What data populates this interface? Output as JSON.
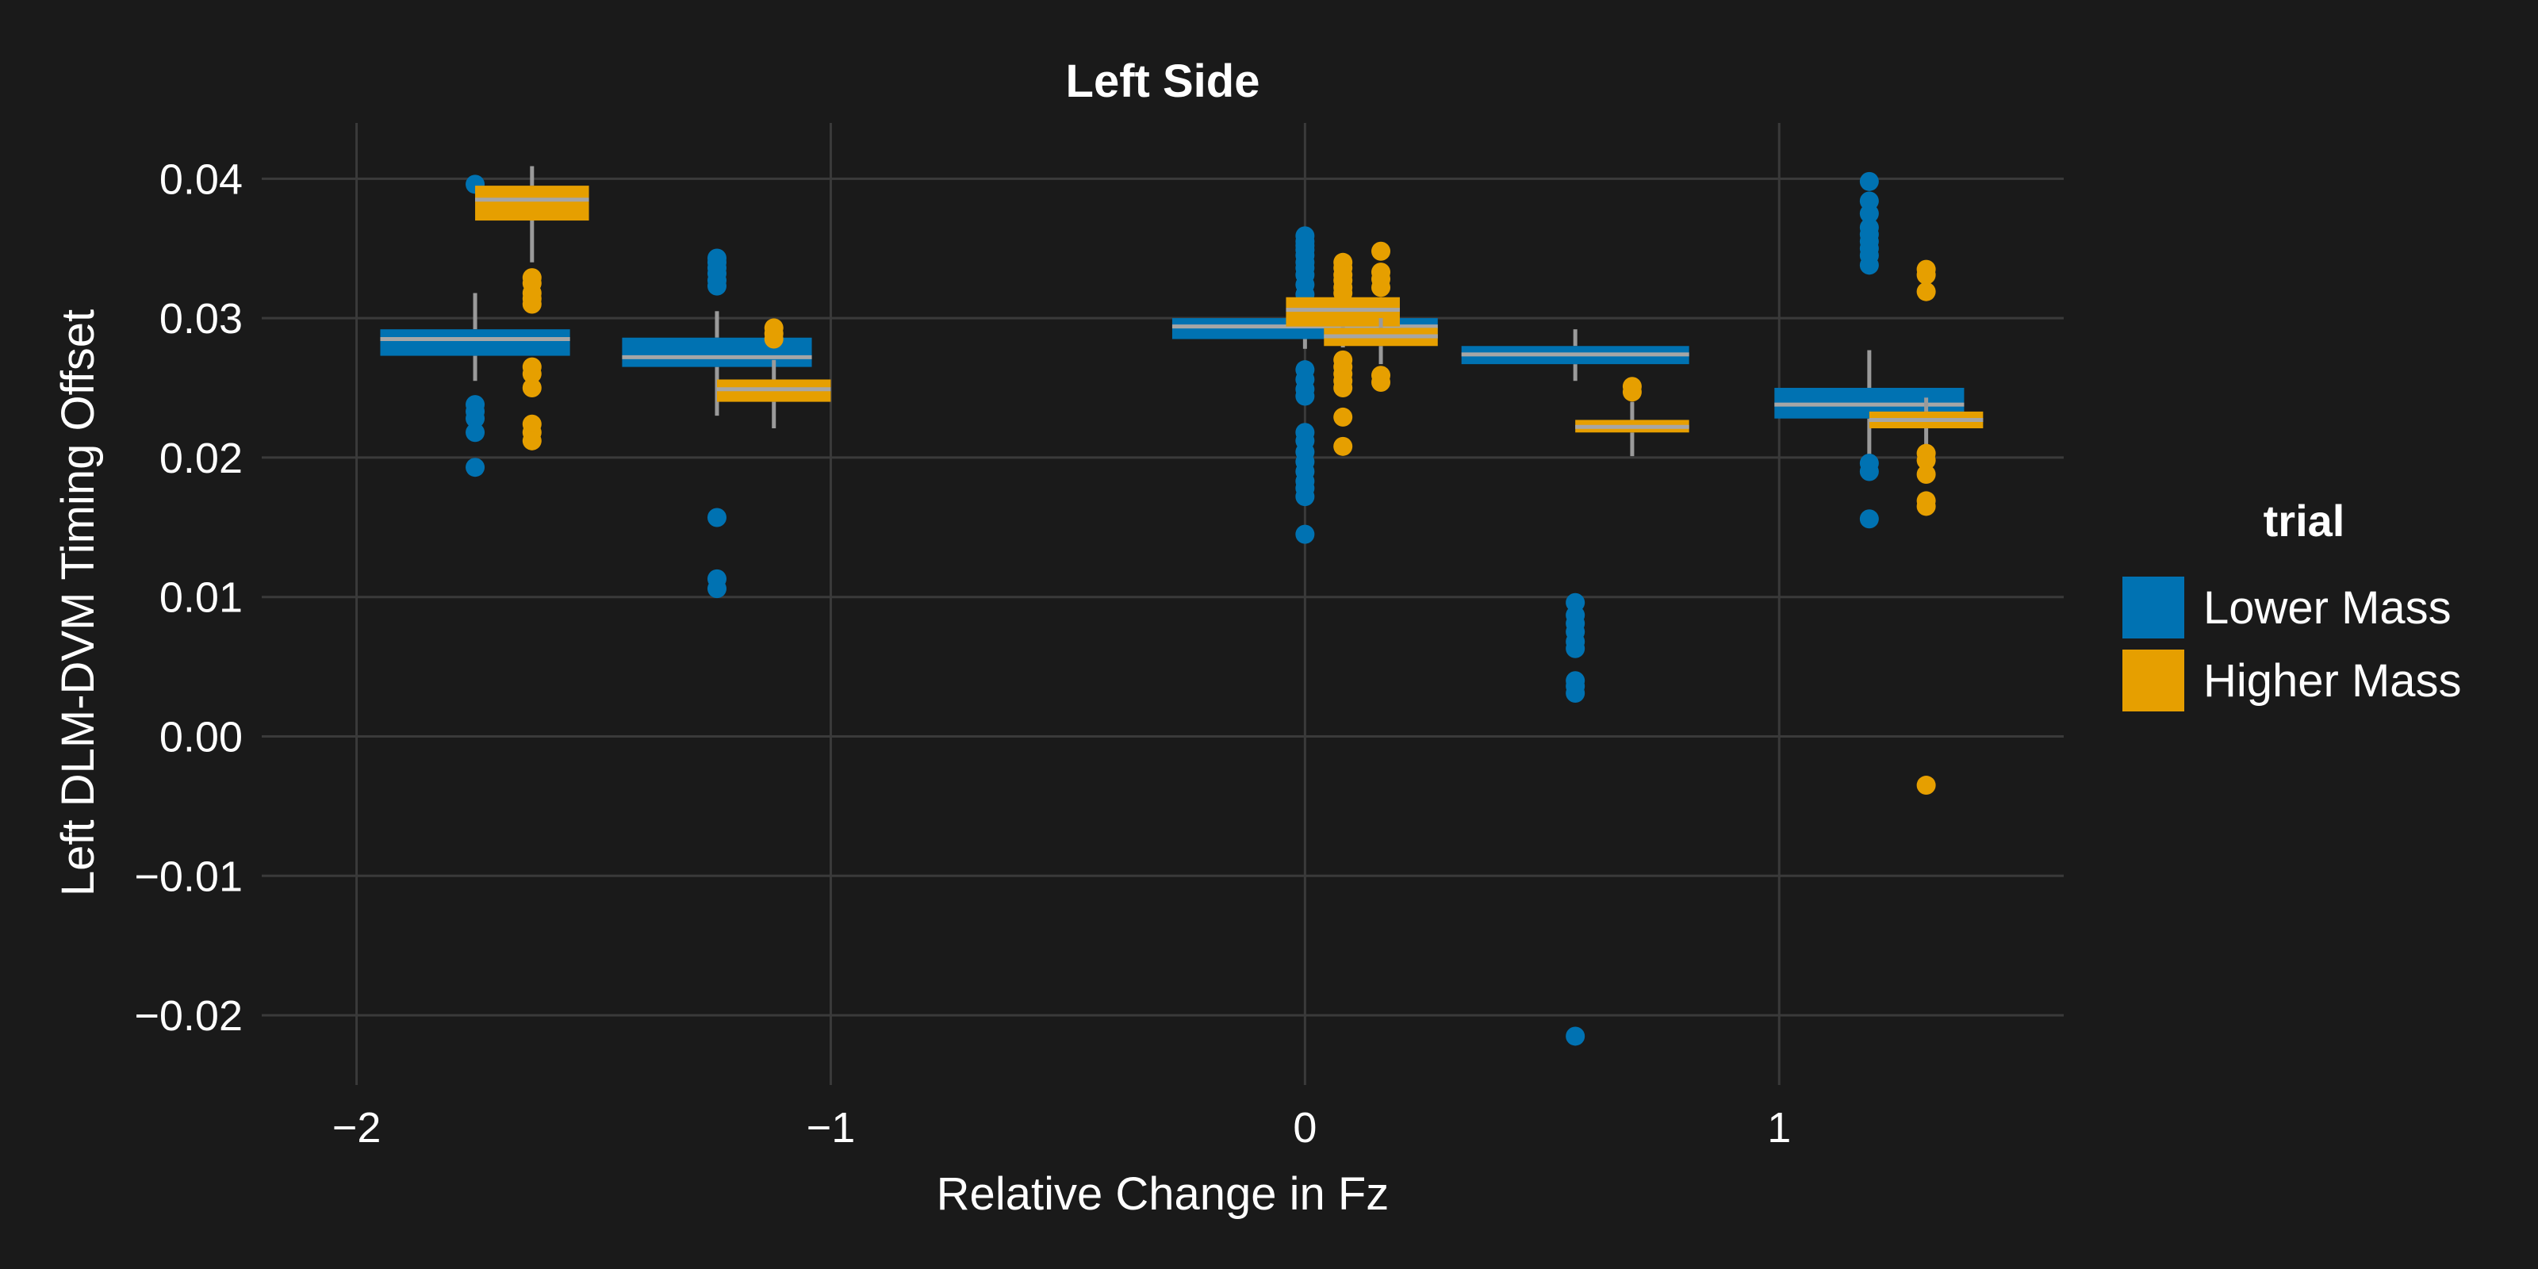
{
  "chart_data": {
    "type": "boxplot",
    "title": "Left Side",
    "xlabel": "Relative Change in Fz",
    "ylabel": "Left DLM-DVM Timing Offset",
    "xlim": [
      -2.2,
      1.6
    ],
    "ylim": [
      -0.025,
      0.044
    ],
    "x_ticks": [
      -2,
      -1,
      0,
      1
    ],
    "x_tick_labels": [
      "−2",
      "−1",
      "0",
      "1"
    ],
    "y_ticks": [
      -0.02,
      -0.01,
      0.0,
      0.01,
      0.02,
      0.03,
      0.04
    ],
    "y_tick_labels": [
      "−0.02",
      "−0.01",
      "0.00",
      "0.01",
      "0.02",
      "0.03",
      "0.04"
    ],
    "grid": true,
    "legend": {
      "title": "trial",
      "position": "right"
    },
    "series": [
      {
        "name": "Lower Mass",
        "color": "#0072b2",
        "boxes": [
          {
            "x": -1.75,
            "halfwidth": 0.2,
            "q1": 0.0273,
            "median": 0.0285,
            "q3": 0.0292,
            "whisker_low": 0.0255,
            "whisker_high": 0.0318,
            "outliers": [
              0.0396,
              0.0238,
              0.0233,
              0.0228,
              0.0218,
              0.0193
            ]
          },
          {
            "x": -1.24,
            "halfwidth": 0.2,
            "q1": 0.0265,
            "median": 0.0272,
            "q3": 0.0286,
            "whisker_low": 0.023,
            "whisker_high": 0.0305,
            "outliers": [
              0.0343,
              0.034,
              0.0336,
              0.0332,
              0.0327,
              0.0323,
              0.0157,
              0.0113,
              0.0106
            ]
          },
          {
            "x": 0.0,
            "halfwidth": 0.28,
            "q1": 0.0285,
            "median": 0.0294,
            "q3": 0.03,
            "whisker_low": 0.0278,
            "whisker_high": 0.032,
            "outliers": [
              0.0359,
              0.0355,
              0.0349,
              0.0345,
              0.034,
              0.0336,
              0.0331,
              0.0324,
              0.0263,
              0.0256,
              0.0249,
              0.0244,
              0.0218,
              0.0212,
              0.0204,
              0.0197,
              0.019,
              0.0183,
              0.0178,
              0.0172,
              0.0145,
              0.0352,
              0.0317
            ]
          },
          {
            "x": 0.57,
            "halfwidth": 0.24,
            "q1": 0.0267,
            "median": 0.0274,
            "q3": 0.028,
            "whisker_low": 0.0255,
            "whisker_high": 0.0292,
            "outliers": [
              0.0096,
              0.0087,
              0.0081,
              0.0075,
              0.0068,
              0.0063,
              0.004,
              0.0036,
              0.0031,
              -0.0215
            ]
          },
          {
            "x": 1.19,
            "halfwidth": 0.2,
            "q1": 0.0228,
            "median": 0.0238,
            "q3": 0.025,
            "whisker_low": 0.02,
            "whisker_high": 0.0277,
            "outliers": [
              0.0398,
              0.0384,
              0.0375,
              0.0365,
              0.036,
              0.0355,
              0.035,
              0.0345,
              0.0338,
              0.0196,
              0.019,
              0.0156
            ]
          }
        ]
      },
      {
        "name": "Higher Mass",
        "color": "#e69f00",
        "boxes": [
          {
            "x": -1.63,
            "halfwidth": 0.12,
            "q1": 0.037,
            "median": 0.0385,
            "q3": 0.0395,
            "whisker_low": 0.034,
            "whisker_high": 0.0409,
            "outliers": [
              0.0329,
              0.0325,
              0.0318,
              0.0314,
              0.031,
              0.0265,
              0.026,
              0.025,
              0.0224,
              0.0218,
              0.0212
            ]
          },
          {
            "x": -1.12,
            "halfwidth": 0.12,
            "q1": 0.024,
            "median": 0.0249,
            "q3": 0.0256,
            "whisker_low": 0.0221,
            "whisker_high": 0.027,
            "outliers": [
              0.0293,
              0.0289,
              0.0285
            ]
          },
          {
            "x": 0.08,
            "halfwidth": 0.12,
            "q1": 0.0294,
            "median": 0.0306,
            "q3": 0.0315,
            "whisker_low": 0.0279,
            "whisker_high": 0.0318,
            "outliers": [
              0.034,
              0.0336,
              0.0331,
              0.0327,
              0.0322,
              0.0318,
              0.027,
              0.0265,
              0.026,
              0.0255,
              0.025,
              0.0229,
              0.0208
            ]
          },
          {
            "x": 0.16,
            "halfwidth": 0.12,
            "q1": 0.028,
            "median": 0.0287,
            "q3": 0.0293,
            "whisker_low": 0.0267,
            "whisker_high": 0.03,
            "outliers": [
              0.0348,
              0.0333,
              0.0328,
              0.0322,
              0.0259,
              0.0254
            ]
          },
          {
            "x": 0.69,
            "halfwidth": 0.12,
            "q1": 0.0218,
            "median": 0.0222,
            "q3": 0.0227,
            "whisker_low": 0.0201,
            "whisker_high": 0.024,
            "outliers": [
              0.0251,
              0.0247
            ]
          },
          {
            "x": 1.31,
            "halfwidth": 0.12,
            "q1": 0.0221,
            "median": 0.0227,
            "q3": 0.0233,
            "whisker_low": 0.0206,
            "whisker_high": 0.0243,
            "outliers": [
              0.0335,
              0.0331,
              0.0319,
              0.0203,
              0.0198,
              0.0188,
              0.0169,
              0.0165,
              -0.0035
            ]
          }
        ]
      }
    ]
  }
}
